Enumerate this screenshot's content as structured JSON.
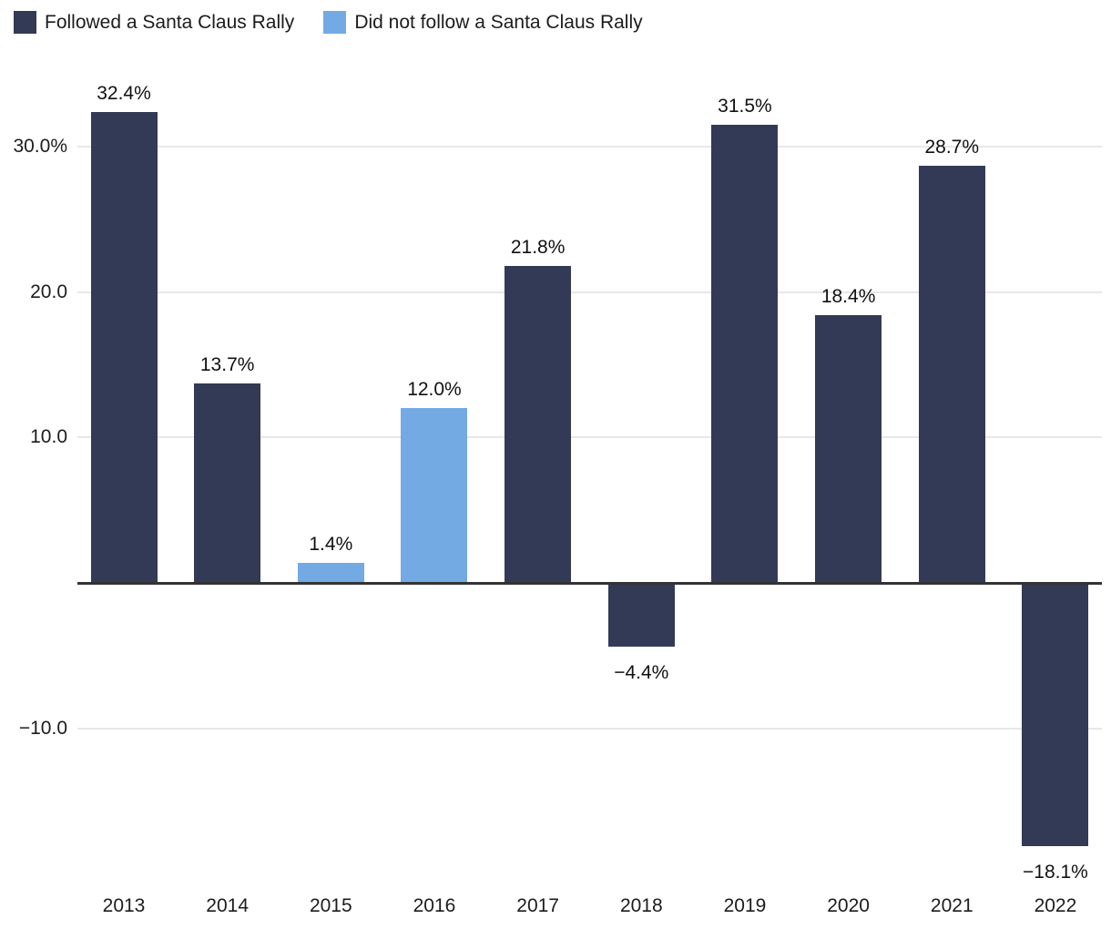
{
  "legend": {
    "items": [
      {
        "label": "Followed a Santa Claus Rally",
        "color": "#333a56"
      },
      {
        "label": "Did not follow a Santa Claus Rally",
        "color": "#74aae3"
      }
    ]
  },
  "chart_data": {
    "type": "bar",
    "categories": [
      "2013",
      "2014",
      "2015",
      "2016",
      "2017",
      "2018",
      "2019",
      "2020",
      "2021",
      "2022"
    ],
    "series": [
      {
        "values": [
          32.4,
          13.7,
          1.4,
          12.0,
          21.8,
          -4.4,
          31.5,
          18.4,
          28.7,
          -18.1
        ]
      }
    ],
    "legend_index": [
      0,
      0,
      1,
      1,
      0,
      0,
      0,
      0,
      0,
      0
    ],
    "data_labels": [
      "32.4%",
      "13.7%",
      "1.4%",
      "12.0%",
      "21.8%",
      "−4.4%",
      "31.5%",
      "18.4%",
      "28.7%",
      "−18.1%"
    ],
    "yticks": [
      {
        "value": 30,
        "label": "30.0%"
      },
      {
        "value": 20,
        "label": "20.0"
      },
      {
        "value": 10,
        "label": "10.0"
      },
      {
        "value": -10,
        "label": "−10.0"
      }
    ],
    "ylim": [
      -21,
      35
    ],
    "grid": true,
    "legend_position": "top-left",
    "colors": {
      "grid": "#e8e8e8",
      "axis": "#333333",
      "text": "#1c1c1c"
    }
  }
}
